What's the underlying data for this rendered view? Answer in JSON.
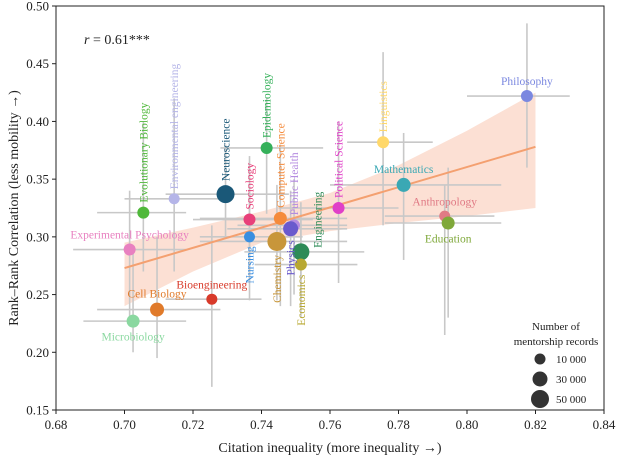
{
  "chart_data": {
    "type": "scatter",
    "xlabel": "Citation inequality (more inequality →)",
    "ylabel": "Rank–Rank Correlation (less mobility →)",
    "xlim": [
      0.68,
      0.84
    ],
    "ylim": [
      0.15,
      0.5
    ],
    "xticks": [
      "0.68",
      "0.70",
      "0.72",
      "0.74",
      "0.76",
      "0.78",
      "0.80",
      "0.82",
      "0.84"
    ],
    "yticks": [
      "0.15",
      "0.20",
      "0.25",
      "0.30",
      "0.35",
      "0.40",
      "0.45",
      "0.50"
    ],
    "annotation_r": "0.61",
    "annotation_sig": "***",
    "trend_line": {
      "x": [
        0.7,
        0.82
      ],
      "y": [
        0.273,
        0.378
      ]
    },
    "confidence_band": {
      "x": [
        0.7,
        0.72,
        0.74,
        0.76,
        0.78,
        0.8,
        0.82
      ],
      "upper": [
        0.295,
        0.308,
        0.322,
        0.338,
        0.362,
        0.392,
        0.425
      ],
      "lower": [
        0.24,
        0.27,
        0.295,
        0.305,
        0.312,
        0.318,
        0.325
      ]
    },
    "points": [
      {
        "name": "Philosophy",
        "x": 0.8175,
        "y": 0.422,
        "xerr": [
          0.8,
          0.83
        ],
        "yerr": [
          0.36,
          0.485
        ],
        "color": "#7b88e0",
        "size": 6,
        "label_side": "above",
        "label_rotated": false
      },
      {
        "name": "Linguistics",
        "x": 0.7755,
        "y": 0.382,
        "xerr": [
          0.765,
          0.79
        ],
        "yerr": [
          0.31,
          0.46
        ],
        "color": "#ffd86a",
        "size": 6,
        "label_side": "above",
        "label_rotated": true
      },
      {
        "name": "Mathematics",
        "x": 0.7815,
        "y": 0.345,
        "xerr": [
          0.76,
          0.81
        ],
        "yerr": [
          0.28,
          0.39
        ],
        "color": "#3aa8b4",
        "size": 7,
        "label_side": "above",
        "label_rotated": false
      },
      {
        "name": "Anthropology",
        "x": 0.7935,
        "y": 0.318,
        "xerr": [
          0.776,
          0.808
        ],
        "yerr": [
          0.215,
          0.345
        ],
        "color": "#e07a85",
        "size": 5.5,
        "label_side": "above",
        "label_rotated": false
      },
      {
        "name": "Education",
        "x": 0.7945,
        "y": 0.312,
        "xerr": [
          0.776,
          0.81
        ],
        "yerr": [
          0.23,
          0.36
        ],
        "color": "#7fa83a",
        "size": 6.5,
        "label_side": "below",
        "label_rotated": false
      },
      {
        "name": "Political Science",
        "x": 0.7625,
        "y": 0.325,
        "xerr": [
          0.745,
          0.78
        ],
        "yerr": [
          0.26,
          0.4
        ],
        "color": "#e040c8",
        "size": 6,
        "label_side": "above",
        "label_rotated": true
      },
      {
        "name": "Public Health",
        "x": 0.7495,
        "y": 0.31,
        "xerr": [
          0.733,
          0.765
        ],
        "yerr": [
          0.25,
          0.35
        ],
        "color": "#b58be0",
        "size": 6,
        "label_side": "above",
        "label_rotated": true
      },
      {
        "name": "Engineering",
        "x": 0.7515,
        "y": 0.287,
        "xerr": [
          0.735,
          0.77
        ],
        "yerr": [
          0.24,
          0.33
        ],
        "color": "#2e8b57",
        "size": 8.5,
        "label_side": "right",
        "label_rotated": true
      },
      {
        "name": "Economics",
        "x": 0.7515,
        "y": 0.276,
        "xerr": [
          0.738,
          0.768
        ],
        "yerr": [
          0.23,
          0.32
        ],
        "color": "#b8a832",
        "size": 6,
        "label_side": "below",
        "label_rotated": true
      },
      {
        "name": "Physics",
        "x": 0.7485,
        "y": 0.307,
        "xerr": [
          0.73,
          0.765
        ],
        "yerr": [
          0.24,
          0.34
        ],
        "color": "#6a5acd",
        "size": 7.5,
        "label_side": "below",
        "label_rotated": true
      },
      {
        "name": "Computer Science",
        "x": 0.7455,
        "y": 0.316,
        "xerr": [
          0.722,
          0.765
        ],
        "yerr": [
          0.24,
          0.38
        ],
        "color": "#f58a3a",
        "size": 6.5,
        "label_side": "above",
        "label_rotated": true
      },
      {
        "name": "Chemistry",
        "x": 0.7445,
        "y": 0.296,
        "xerr": [
          0.722,
          0.765
        ],
        "yerr": [
          0.245,
          0.345
        ],
        "color": "#c8963a",
        "size": 9.5,
        "label_side": "below",
        "label_rotated": true
      },
      {
        "name": "Epidemiology",
        "x": 0.7415,
        "y": 0.377,
        "xerr": [
          0.728,
          0.758
        ],
        "yerr": [
          0.32,
          0.42
        ],
        "color": "#35b05a",
        "size": 6,
        "label_side": "above",
        "label_rotated": true
      },
      {
        "name": "Sociology",
        "x": 0.7365,
        "y": 0.315,
        "xerr": [
          0.72,
          0.755
        ],
        "yerr": [
          0.26,
          0.37
        ],
        "color": "#e8407a",
        "size": 6,
        "label_side": "above",
        "label_rotated": true
      },
      {
        "name": "Nursing",
        "x": 0.7365,
        "y": 0.3,
        "xerr": [
          0.722,
          0.752
        ],
        "yerr": [
          0.245,
          0.34
        ],
        "color": "#3a8ee0",
        "size": 5.5,
        "label_side": "below",
        "label_rotated": true
      },
      {
        "name": "Neuroscience",
        "x": 0.7295,
        "y": 0.337,
        "xerr": [
          0.712,
          0.748
        ],
        "yerr": [
          0.3,
          0.38
        ],
        "color": "#1a5878",
        "size": 9,
        "label_side": "above",
        "label_rotated": true
      },
      {
        "name": "Bioengineering",
        "x": 0.7255,
        "y": 0.246,
        "xerr": [
          0.712,
          0.74
        ],
        "yerr": [
          0.17,
          0.31
        ],
        "color": "#d83a2a",
        "size": 5.5,
        "label_side": "above",
        "label_rotated": false
      },
      {
        "name": "Environmental engineering",
        "x": 0.7145,
        "y": 0.333,
        "xerr": [
          0.7,
          0.728
        ],
        "yerr": [
          0.27,
          0.42
        ],
        "color": "#b5b5e8",
        "size": 5.5,
        "label_side": "above",
        "label_rotated": true
      },
      {
        "name": "Evolutionary Biology",
        "x": 0.7055,
        "y": 0.321,
        "xerr": [
          0.692,
          0.718
        ],
        "yerr": [
          0.27,
          0.4
        ],
        "color": "#4fb83a",
        "size": 6,
        "label_side": "above",
        "label_rotated": true
      },
      {
        "name": "Experimental Psychology",
        "x": 0.7015,
        "y": 0.289,
        "xerr": [
          0.685,
          0.718
        ],
        "yerr": [
          0.23,
          0.34
        ],
        "color": "#e880c0",
        "size": 6,
        "label_side": "above",
        "label_rotated": false
      },
      {
        "name": "Cell Biology",
        "x": 0.7095,
        "y": 0.237,
        "xerr": [
          0.692,
          0.728
        ],
        "yerr": [
          0.195,
          0.3
        ],
        "color": "#e07a2a",
        "size": 7,
        "label_side": "above",
        "label_rotated": false
      },
      {
        "name": "Microbiology",
        "x": 0.7025,
        "y": 0.227,
        "xerr": [
          0.688,
          0.718
        ],
        "yerr": [
          0.2,
          0.29
        ],
        "color": "#8ad8a0",
        "size": 6.5,
        "label_side": "below",
        "label_rotated": false
      }
    ],
    "legend": {
      "title_line1": "Number of",
      "title_line2": "mentorship records",
      "placement": "bottom-right",
      "entries": [
        {
          "label": "10 000",
          "size": 5.5
        },
        {
          "label": "30 000",
          "size": 7.5
        },
        {
          "label": "50 000",
          "size": 9
        }
      ]
    },
    "trend_color": "#f4a070",
    "band_color": "#fbd5c5",
    "errorbar_color": "#c8c8c8"
  }
}
